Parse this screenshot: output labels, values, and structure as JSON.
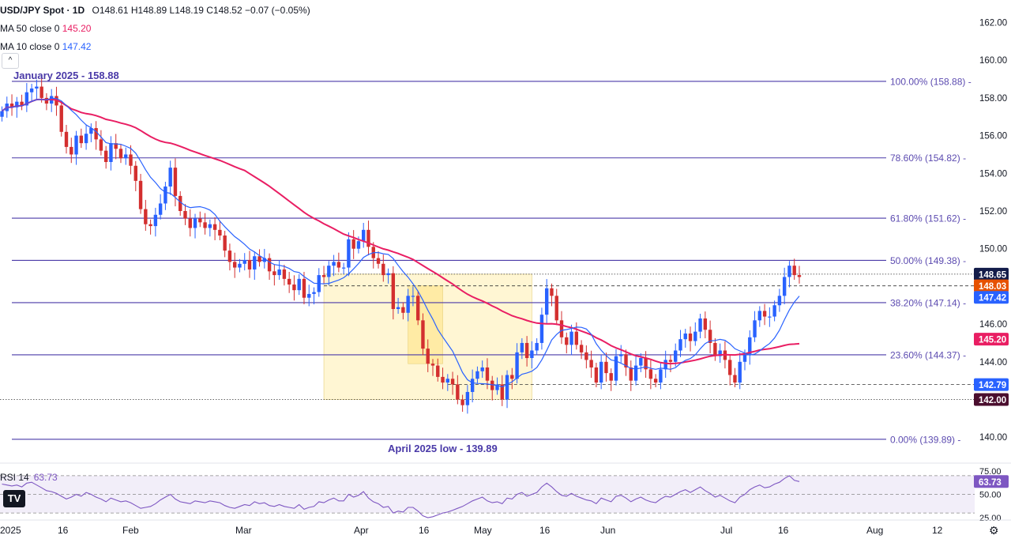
{
  "legend": {
    "symbol": "USD/JPY Spot · 1D",
    "ohlc": "O148.61  H148.89  L148.19  C148.52  −0.07 (−0.05%)",
    "ma50_label": "MA 50 close 0",
    "ma50_value": "145.20",
    "ma10_label": "MA 10 close 0",
    "ma10_value": "147.42",
    "collapse_glyph": "^"
  },
  "rsi_legend": {
    "label": "RSI 14",
    "value": "63.73"
  },
  "logo_text": "TV",
  "settings_glyph": "⚙",
  "colors": {
    "up": "#2962ff",
    "down": "#d32f2f",
    "ma50": "#e91e63",
    "ma10": "#2962ff",
    "fib": "#4a3aa8",
    "rsi": "#7e57c2",
    "box_fill": "#fff3c4",
    "box_inner": "#ffe99a"
  },
  "chart_data": {
    "type": "candlestick",
    "title": "USD/JPY Spot · 1D",
    "y_axis": {
      "min": 138.8,
      "max": 162.8,
      "ticks": [
        "162.00",
        "160.00",
        "158.00",
        "156.00",
        "154.00",
        "152.00",
        "150.00",
        "146.00",
        "144.00",
        "140.00"
      ]
    },
    "x_axis": {
      "labels": [
        "2025",
        "16",
        "Feb",
        "Mar",
        "Apr",
        "16",
        "May",
        "16",
        "Jun",
        "Jul",
        "16",
        "Aug",
        "12"
      ]
    },
    "annotations": {
      "top_label": "January 2025 - 158.88",
      "bottom_label": "April 2025 low - 139.89"
    },
    "fib_levels": [
      {
        "label": "100.00% (158.88)",
        "value": 158.88
      },
      {
        "label": "78.60% (154.82)",
        "value": 154.82
      },
      {
        "label": "61.80% (151.62)",
        "value": 151.62
      },
      {
        "label": "50.00% (149.38)",
        "value": 149.38
      },
      {
        "label": "38.20% (147.14)",
        "value": 147.14
      },
      {
        "label": "23.60% (144.37)",
        "value": 144.37
      },
      {
        "label": "0.00% (139.89)",
        "value": 139.89
      }
    ],
    "price_tags": [
      {
        "label": "148.65",
        "value": 148.65,
        "color": "#131c4a"
      },
      {
        "label": "148.03",
        "value": 148.03,
        "color": "#e65100"
      },
      {
        "label": "147.42",
        "value": 147.42,
        "color": "#2962ff"
      },
      {
        "label": "145.20",
        "value": 145.2,
        "color": "#e91e63"
      },
      {
        "label": "142.79",
        "value": 142.79,
        "color": "#2962ff"
      },
      {
        "label": "142.00",
        "value": 142.0,
        "color": "#4a0e2e"
      }
    ],
    "reference_lines": [
      {
        "value": 148.65,
        "style": "dotted"
      },
      {
        "value": 148.03,
        "style": "dashed"
      },
      {
        "value": 142.79,
        "style": "dashed"
      },
      {
        "value": 142.0,
        "style": "dotted"
      }
    ],
    "range_box": {
      "start_index": 65,
      "end_index": 107,
      "top": 148.65,
      "bottom": 142.0
    },
    "inner_box": {
      "start_index": 82,
      "end_index": 89,
      "top": 148.03,
      "bottom": 143.9
    },
    "closes": [
      157.3,
      157.7,
      157.5,
      157.8,
      157.6,
      158.3,
      158.5,
      158.6,
      158.0,
      157.7,
      158.1,
      157.6,
      156.2,
      155.4,
      155.0,
      156.0,
      155.6,
      156.1,
      156.4,
      155.8,
      155.2,
      154.6,
      155.6,
      155.3,
      154.8,
      155.0,
      154.4,
      153.6,
      152.1,
      151.3,
      151.2,
      151.8,
      152.4,
      153.3,
      154.3,
      152.8,
      152.0,
      151.6,
      151.1,
      151.6,
      151.4,
      151.1,
      151.3,
      151.0,
      150.7,
      149.9,
      149.3,
      149.0,
      149.2,
      149.4,
      148.9,
      149.6,
      149.3,
      149.5,
      148.8,
      148.6,
      148.9,
      148.4,
      148.1,
      147.8,
      148.4,
      147.4,
      147.6,
      147.7,
      148.6,
      148.5,
      149.1,
      149.3,
      149.0,
      149.0,
      150.5,
      150.0,
      150.4,
      151.0,
      150.1,
      149.5,
      149.2,
      148.6,
      148.7,
      146.8,
      146.9,
      146.6,
      147.5,
      147.5,
      146.2,
      144.7,
      143.9,
      143.8,
      143.2,
      142.9,
      143.1,
      142.8,
      142.0,
      141.7,
      142.4,
      143.1,
      143.5,
      143.7,
      143.0,
      142.5,
      142.8,
      142.0,
      143.3,
      143.1,
      144.5,
      145.0,
      144.2,
      144.6,
      145.0,
      146.5,
      147.9,
      147.5,
      146.2,
      145.3,
      144.9,
      145.6,
      144.9,
      144.5,
      144.1,
      143.7,
      142.9,
      144.0,
      143.4,
      143.0,
      144.3,
      144.4,
      143.7,
      143.0,
      143.8,
      144.2,
      143.6,
      143.1,
      142.9,
      143.6,
      144.1,
      144.0,
      144.6,
      145.2,
      145.5,
      145.1,
      145.6,
      146.3,
      145.7,
      145.0,
      144.3,
      144.6,
      144.1,
      143.3,
      142.9,
      144.0,
      144.4,
      145.3,
      146.2,
      146.7,
      146.4,
      146.4,
      147.0,
      147.5,
      148.5,
      149.1,
      148.6,
      148.5
    ],
    "series": [
      {
        "name": "MA 50 close 0",
        "color": "#e91e63",
        "last": 145.2
      },
      {
        "name": "MA 10 close 0",
        "color": "#2962ff",
        "last": 147.42
      }
    ],
    "rsi": {
      "label": "RSI 14",
      "last": "63.73",
      "range": [
        25,
        75
      ],
      "ticks": [
        "75.00",
        "50.00",
        "25.00"
      ],
      "values": [
        61,
        60,
        59,
        60,
        58,
        62,
        63,
        60,
        57,
        54,
        53,
        51,
        48,
        45,
        47,
        50,
        48,
        52,
        50,
        47,
        45,
        42,
        46,
        44,
        42,
        43,
        41,
        38,
        35,
        36,
        37,
        40,
        44,
        47,
        50,
        45,
        42,
        41,
        40,
        43,
        42,
        41,
        43,
        42,
        41,
        38,
        36,
        35,
        37,
        39,
        38,
        42,
        40,
        41,
        38,
        37,
        39,
        37,
        36,
        35,
        39,
        34,
        36,
        37,
        42,
        41,
        44,
        46,
        43,
        43,
        50,
        47,
        49,
        53,
        46,
        42,
        40,
        36,
        37,
        30,
        32,
        31,
        36,
        36,
        32,
        27,
        25,
        26,
        28,
        30,
        31,
        33,
        35,
        37,
        40,
        43,
        45,
        47,
        43,
        41,
        42,
        40,
        46,
        45,
        50,
        52,
        48,
        50,
        52,
        58,
        62,
        58,
        53,
        49,
        48,
        51,
        48,
        46,
        44,
        43,
        40,
        46,
        44,
        42,
        48,
        49,
        46,
        42,
        45,
        47,
        44,
        42,
        41,
        45,
        48,
        47,
        50,
        53,
        55,
        52,
        55,
        58,
        54,
        51,
        47,
        49,
        46,
        43,
        41,
        47,
        50,
        55,
        58,
        60,
        57,
        58,
        61,
        63,
        67,
        70,
        65,
        63.73
      ]
    }
  }
}
